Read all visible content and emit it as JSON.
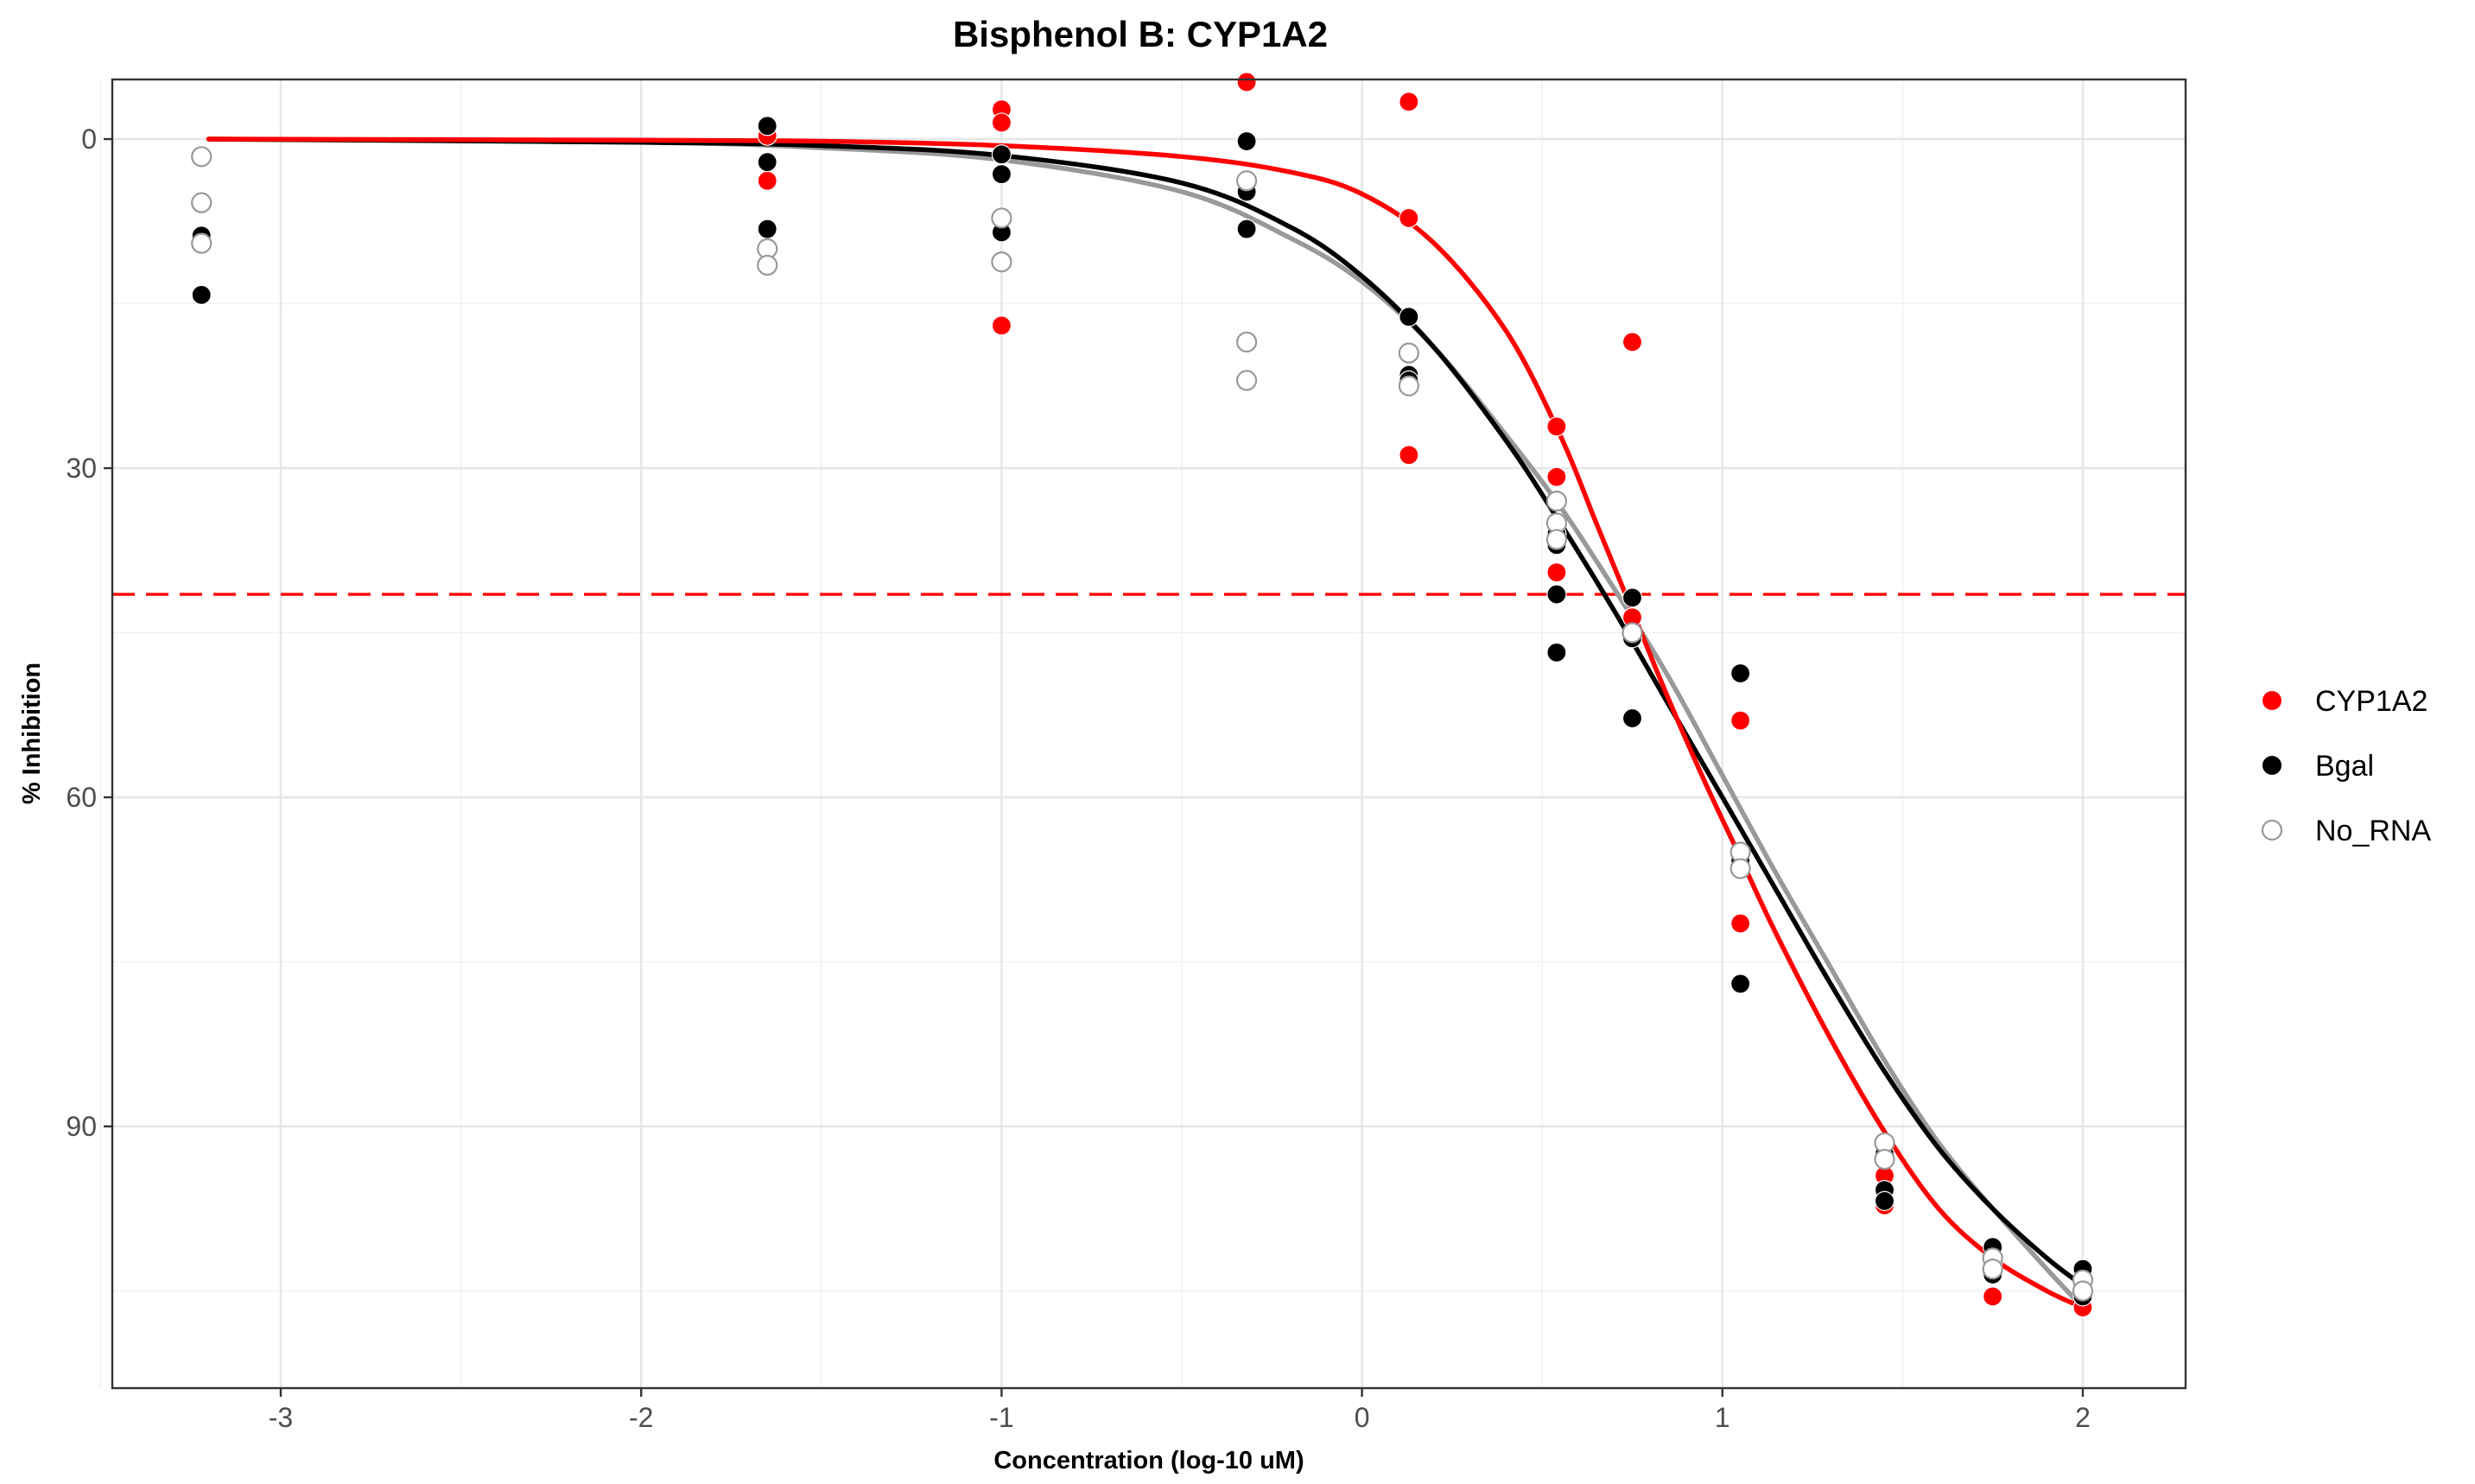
{
  "chart_data": {
    "type": "scatter",
    "title": "Bisphenol B: CYP1A2",
    "xlabel": "Concentration (log-10 uM)",
    "ylabel": "% Inhibition",
    "xlim": [
      -3.45,
      2.27
    ],
    "ylim": [
      0,
      100
    ],
    "y_reversed": true,
    "x_ticks": [
      -3,
      -2,
      -1,
      0,
      1,
      2
    ],
    "y_ticks": [
      0,
      30,
      60,
      90
    ],
    "grid": true,
    "legend_position": "right",
    "reference_line": {
      "y": 41.5,
      "color": "#ff0000",
      "style": "dashed"
    },
    "series": [
      {
        "name": "CYP1A2",
        "color": "#ff0000",
        "marker": "filled",
        "points": [
          [
            -1.65,
            -0.3
          ],
          [
            -1.65,
            3.8
          ],
          [
            -1.0,
            -2.7
          ],
          [
            -1.0,
            -1.5
          ],
          [
            -1.0,
            17.0
          ],
          [
            -0.32,
            -5.2
          ],
          [
            -0.32,
            4.0
          ],
          [
            0.13,
            -3.4
          ],
          [
            0.13,
            7.2
          ],
          [
            0.13,
            28.8
          ],
          [
            0.54,
            26.2
          ],
          [
            0.54,
            30.8
          ],
          [
            0.54,
            39.5
          ],
          [
            0.75,
            18.5
          ],
          [
            0.75,
            43.6
          ],
          [
            1.05,
            53.0
          ],
          [
            1.05,
            71.5
          ],
          [
            1.45,
            94.5
          ],
          [
            1.45,
            97.2
          ],
          [
            1.75,
            105.5
          ],
          [
            2.0,
            106.5
          ]
        ],
        "fit": [
          [
            -3.2,
            0.0
          ],
          [
            -2.0,
            0.1
          ],
          [
            -1.5,
            0.2
          ],
          [
            -1.0,
            0.6
          ],
          [
            -0.5,
            1.6
          ],
          [
            -0.2,
            3.0
          ],
          [
            0.0,
            5.0
          ],
          [
            0.2,
            9.5
          ],
          [
            0.4,
            17.5
          ],
          [
            0.55,
            27.0
          ],
          [
            0.65,
            35.0
          ],
          [
            0.75,
            43.0
          ],
          [
            0.85,
            51.0
          ],
          [
            0.95,
            58.5
          ],
          [
            1.05,
            65.5
          ],
          [
            1.15,
            72.5
          ],
          [
            1.3,
            82.0
          ],
          [
            1.45,
            90.5
          ],
          [
            1.6,
            97.5
          ],
          [
            1.75,
            102.0
          ],
          [
            1.9,
            105.0
          ],
          [
            2.0,
            106.5
          ]
        ]
      },
      {
        "name": "Bgal",
        "color": "#000000",
        "marker": "filled",
        "points": [
          [
            -3.22,
            8.8
          ],
          [
            -3.22,
            14.2
          ],
          [
            -1.65,
            -1.2
          ],
          [
            -1.65,
            2.1
          ],
          [
            -1.65,
            8.2
          ],
          [
            -1.0,
            1.4
          ],
          [
            -1.0,
            3.2
          ],
          [
            -1.0,
            8.5
          ],
          [
            -0.32,
            0.2
          ],
          [
            -0.32,
            4.8
          ],
          [
            -0.32,
            8.2
          ],
          [
            0.13,
            16.2
          ],
          [
            0.13,
            21.5
          ],
          [
            0.13,
            22.0
          ],
          [
            0.54,
            36.0
          ],
          [
            0.54,
            37.0
          ],
          [
            0.54,
            41.5
          ],
          [
            0.54,
            46.8
          ],
          [
            0.75,
            41.8
          ],
          [
            0.75,
            45.5
          ],
          [
            0.75,
            52.8
          ],
          [
            1.05,
            48.7
          ],
          [
            1.05,
            65.8
          ],
          [
            1.05,
            77.0
          ],
          [
            1.45,
            92.5
          ],
          [
            1.45,
            95.8
          ],
          [
            1.45,
            96.8
          ],
          [
            1.75,
            101.0
          ],
          [
            1.75,
            102.5
          ],
          [
            1.75,
            103.5
          ],
          [
            2.0,
            103.0
          ],
          [
            2.0,
            104.5
          ],
          [
            2.0,
            105.5
          ]
        ],
        "fit": [
          [
            -3.2,
            0.0
          ],
          [
            -2.0,
            0.3
          ],
          [
            -1.5,
            0.6
          ],
          [
            -1.0,
            1.5
          ],
          [
            -0.5,
            4.0
          ],
          [
            -0.2,
            8.0
          ],
          [
            0.0,
            12.5
          ],
          [
            0.2,
            19.0
          ],
          [
            0.4,
            27.5
          ],
          [
            0.55,
            35.0
          ],
          [
            0.7,
            43.0
          ],
          [
            0.85,
            51.5
          ],
          [
            1.0,
            60.0
          ],
          [
            1.15,
            68.5
          ],
          [
            1.3,
            77.0
          ],
          [
            1.45,
            85.0
          ],
          [
            1.6,
            92.0
          ],
          [
            1.75,
            97.5
          ],
          [
            1.9,
            102.0
          ],
          [
            2.0,
            104.5
          ]
        ]
      },
      {
        "name": "No_RNA",
        "color": "#999999",
        "marker": "open",
        "points": [
          [
            -3.22,
            1.6
          ],
          [
            -3.22,
            5.8
          ],
          [
            -3.22,
            9.5
          ],
          [
            -1.65,
            10.0
          ],
          [
            -1.65,
            11.5
          ],
          [
            -1.0,
            7.2
          ],
          [
            -1.0,
            11.2
          ],
          [
            -0.32,
            3.8
          ],
          [
            -0.32,
            18.5
          ],
          [
            -0.32,
            22.0
          ],
          [
            0.13,
            19.5
          ],
          [
            0.13,
            22.5
          ],
          [
            0.54,
            33.0
          ],
          [
            0.54,
            35.0
          ],
          [
            0.54,
            36.5
          ],
          [
            0.75,
            45.0
          ],
          [
            1.05,
            65.0
          ],
          [
            1.05,
            66.5
          ],
          [
            1.45,
            91.5
          ],
          [
            1.45,
            93.0
          ],
          [
            1.75,
            102.0
          ],
          [
            1.75,
            103.0
          ],
          [
            2.0,
            104.0
          ],
          [
            2.0,
            105.0
          ]
        ],
        "fit": [
          [
            -3.2,
            0.0
          ],
          [
            -2.0,
            0.3
          ],
          [
            -1.5,
            0.8
          ],
          [
            -1.0,
            1.9
          ],
          [
            -0.5,
            4.8
          ],
          [
            -0.2,
            9.0
          ],
          [
            0.0,
            13.0
          ],
          [
            0.2,
            19.0
          ],
          [
            0.4,
            27.0
          ],
          [
            0.55,
            33.5
          ],
          [
            0.7,
            41.0
          ],
          [
            0.85,
            49.0
          ],
          [
            1.0,
            58.0
          ],
          [
            1.15,
            67.0
          ],
          [
            1.3,
            75.5
          ],
          [
            1.45,
            84.0
          ],
          [
            1.6,
            91.5
          ],
          [
            1.75,
            97.5
          ],
          [
            1.9,
            103.0
          ],
          [
            2.0,
            106.5
          ]
        ]
      }
    ]
  }
}
